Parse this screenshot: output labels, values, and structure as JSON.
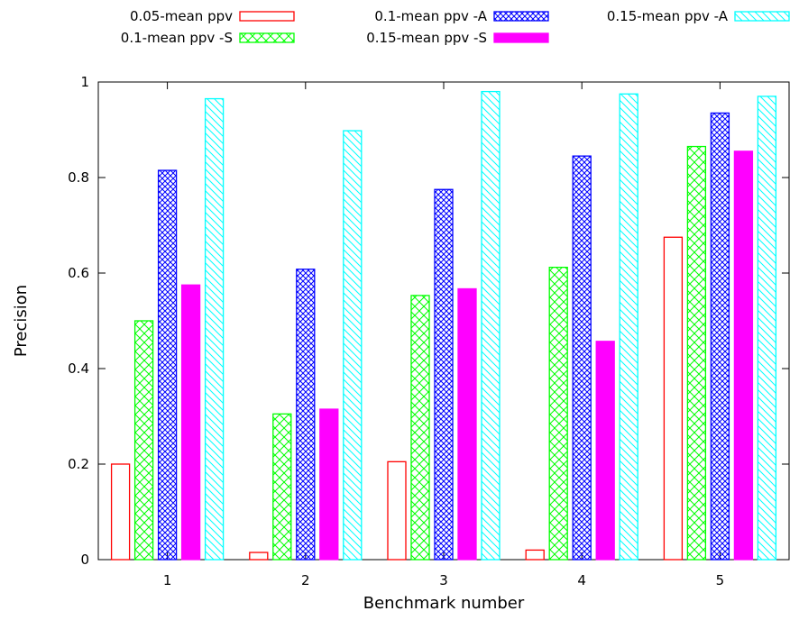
{
  "chart_data": {
    "type": "bar",
    "xlabel": "Benchmark number",
    "ylabel": "Precision",
    "ylim": [
      0,
      1
    ],
    "yticks": [
      "0",
      "0.2",
      "0.4",
      "0.6",
      "0.8",
      "1"
    ],
    "categories": [
      "1",
      "2",
      "3",
      "4",
      "5"
    ],
    "grid": false,
    "legend_position": "top",
    "series": [
      {
        "name": "0.05-mean ppv",
        "values": [
          0.2,
          0.015,
          0.205,
          0.02,
          0.675
        ],
        "color": "#ff0000",
        "pattern": "empty"
      },
      {
        "name": "0.1-mean ppv -S",
        "values": [
          0.5,
          0.305,
          0.553,
          0.612,
          0.865
        ],
        "color": "#00ff00",
        "pattern": "crosshatch"
      },
      {
        "name": "0.1-mean ppv -A",
        "values": [
          0.815,
          0.608,
          0.775,
          0.845,
          0.935
        ],
        "color": "#0000ff",
        "pattern": "dense-crosshatch"
      },
      {
        "name": "0.15-mean ppv -S",
        "values": [
          0.575,
          0.315,
          0.567,
          0.457,
          0.855
        ],
        "color": "#ff00ff",
        "pattern": "solid"
      },
      {
        "name": "0.15-mean ppv -A",
        "values": [
          0.965,
          0.898,
          0.98,
          0.975,
          0.97
        ],
        "color": "#00ffff",
        "pattern": "diagonal"
      }
    ]
  }
}
